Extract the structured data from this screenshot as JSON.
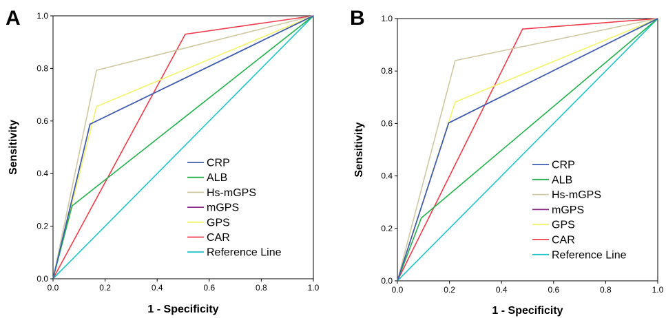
{
  "chart_data": [
    {
      "type": "line",
      "panel_label": "A",
      "xlabel": "1 - Specificity",
      "ylabel": "Sensitivity",
      "xlim": [
        0.0,
        1.0
      ],
      "ylim": [
        0.0,
        1.0
      ],
      "x_ticks": [
        "0.0",
        "0.2",
        "0.4",
        "0.6",
        "0.8",
        "1.0"
      ],
      "y_ticks": [
        "0.0",
        "0.2",
        "0.4",
        "0.6",
        "0.8",
        "1.0"
      ],
      "grid": false,
      "legend_position": "bottom-right",
      "series": [
        {
          "name": "CRP",
          "color": "#3a5fb0",
          "points": [
            [
              0,
              0
            ],
            [
              0.142,
              0.588
            ],
            [
              1,
              1
            ]
          ]
        },
        {
          "name": "ALB",
          "color": "#22b04b",
          "points": [
            [
              0,
              0
            ],
            [
              0.073,
              0.277
            ],
            [
              1,
              1
            ]
          ]
        },
        {
          "name": "Hs-mGPS",
          "color": "#cfc8a3",
          "points": [
            [
              0,
              0
            ],
            [
              0.167,
              0.793
            ],
            [
              1,
              1
            ]
          ]
        },
        {
          "name": "mGPS",
          "color": "#8b2a8b",
          "points": [
            [
              0,
              0
            ],
            [
              0.142,
              0.588
            ],
            [
              1,
              1
            ]
          ]
        },
        {
          "name": "GPS",
          "color": "#f3f36a",
          "points": [
            [
              0,
              0
            ],
            [
              0.167,
              0.655
            ],
            [
              1,
              1
            ]
          ]
        },
        {
          "name": "CAR",
          "color": "#ee3b4a",
          "points": [
            [
              0,
              0
            ],
            [
              0.508,
              0.93
            ],
            [
              1,
              1
            ]
          ]
        },
        {
          "name": "Reference Line",
          "color": "#1fc4c8",
          "points": [
            [
              0,
              0
            ],
            [
              1,
              1
            ]
          ]
        }
      ]
    },
    {
      "type": "line",
      "panel_label": "B",
      "xlabel": "1 - Specificity",
      "ylabel": "Sensitivity",
      "xlim": [
        0.0,
        1.0
      ],
      "ylim": [
        0.0,
        1.0
      ],
      "x_ticks": [
        "0.0",
        "0.2",
        "0.4",
        "0.6",
        "0.8",
        "1.0"
      ],
      "y_ticks": [
        "0.0",
        "0.2",
        "0.4",
        "0.6",
        "0.8",
        "1.0"
      ],
      "grid": false,
      "legend_position": "bottom-right",
      "series": [
        {
          "name": "CRP",
          "color": "#3a5fb0",
          "points": [
            [
              0,
              0
            ],
            [
              0.197,
              0.602
            ],
            [
              1,
              1
            ]
          ]
        },
        {
          "name": "ALB",
          "color": "#22b04b",
          "points": [
            [
              0,
              0
            ],
            [
              0.092,
              0.24
            ],
            [
              1,
              1
            ]
          ]
        },
        {
          "name": "Hs-mGPS",
          "color": "#cfc8a3",
          "points": [
            [
              0,
              0
            ],
            [
              0.222,
              0.84
            ],
            [
              1,
              1
            ]
          ]
        },
        {
          "name": "mGPS",
          "color": "#8b2a8b",
          "points": [
            [
              0,
              0
            ],
            [
              0.197,
              0.602
            ],
            [
              1,
              1
            ]
          ]
        },
        {
          "name": "GPS",
          "color": "#f3f36a",
          "points": [
            [
              0,
              0
            ],
            [
              0.222,
              0.682
            ],
            [
              1,
              1
            ]
          ]
        },
        {
          "name": "CAR",
          "color": "#ee3b4a",
          "points": [
            [
              0,
              0
            ],
            [
              0.481,
              0.96
            ],
            [
              1,
              1
            ]
          ]
        },
        {
          "name": "Reference Line",
          "color": "#1fc4c8",
          "points": [
            [
              0,
              0
            ],
            [
              1,
              1
            ]
          ]
        }
      ]
    }
  ]
}
